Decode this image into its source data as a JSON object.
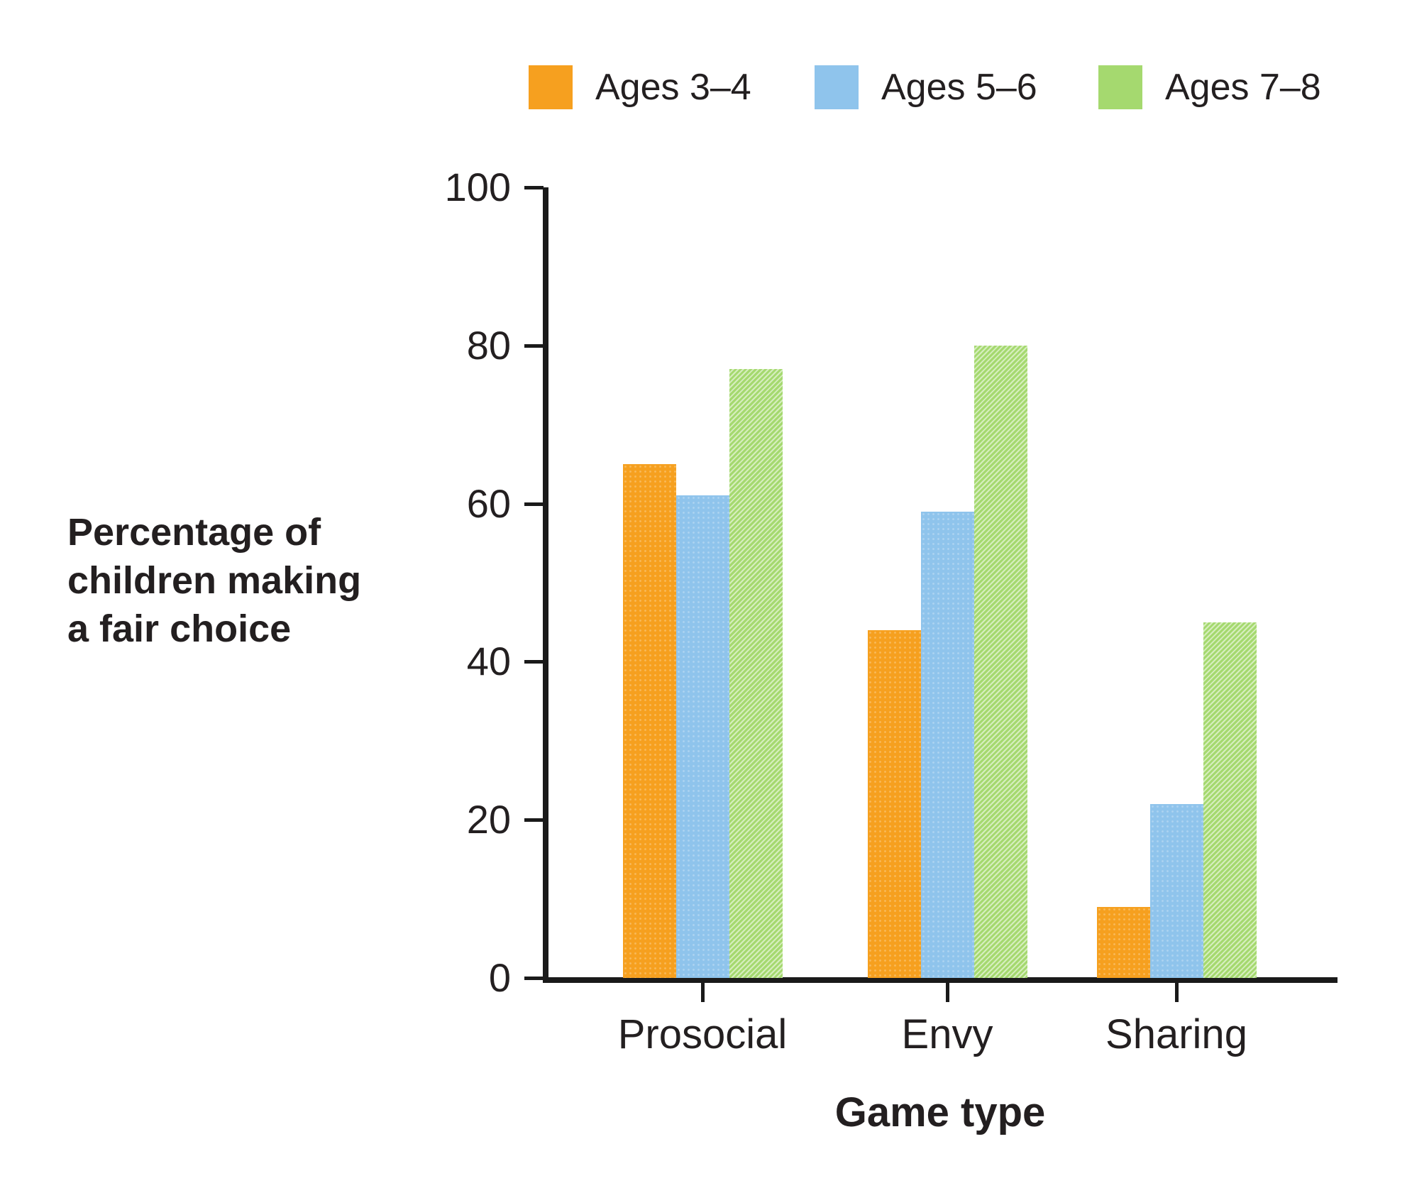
{
  "chart_data": {
    "type": "bar",
    "title": "",
    "xlabel": "Game type",
    "ylabel": "Percentage of\nchildren making\na fair choice",
    "categories": [
      "Prosocial",
      "Envy",
      "Sharing"
    ],
    "series": [
      {
        "name": "Ages 3–4",
        "color": "#F6A01F",
        "pattern": "halftone-dots",
        "values": [
          65,
          44,
          9
        ]
      },
      {
        "name": "Ages 5–6",
        "color": "#8FC4EC",
        "pattern": "halftone-dots",
        "values": [
          61,
          59,
          22
        ]
      },
      {
        "name": "Ages 7–8",
        "color": "#A5D96F",
        "pattern": "diagonal-hatch",
        "values": [
          77,
          80,
          45
        ]
      }
    ],
    "ylim": [
      0,
      100
    ],
    "yticks": [
      0,
      20,
      40,
      60,
      80,
      100
    ],
    "grid": "off",
    "legend_position": "top",
    "axis_color": "#1a1a1a"
  }
}
